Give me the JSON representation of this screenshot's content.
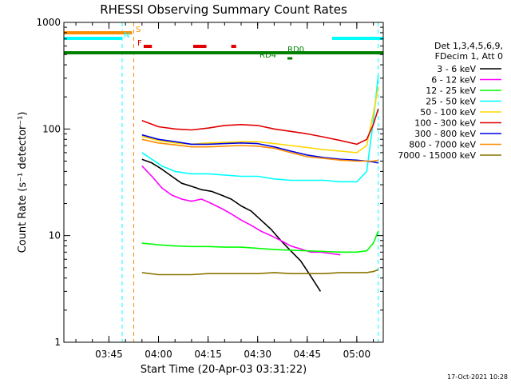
{
  "chart_data": {
    "type": "line",
    "title": "RHESSI Observing Summary Count Rates",
    "xlabel": "Start Time (20-Apr-03 03:31:22)",
    "ylabel": "Count Rate (s⁻¹ detector⁻¹)",
    "yscale": "log",
    "ylim": [
      1,
      1000
    ],
    "y_tick_labels": [
      "1",
      "10",
      "100",
      "1000"
    ],
    "xlim": [
      "03:31:22",
      "05:08:00"
    ],
    "x_ticks": [
      "03:45",
      "04:00",
      "04:15",
      "04:30",
      "04:45",
      "05:00"
    ],
    "grid": false,
    "timestamp": "17-Oct-2021 10:28",
    "legend": {
      "placement": "right",
      "header": [
        "Det 1,3,4,5,6,9,",
        "FDecim 1, Att 0"
      ],
      "entries": [
        {
          "label": "3 - 6 keV",
          "color": "#000000"
        },
        {
          "label": "6 - 12 keV",
          "color": "#ff00ff"
        },
        {
          "label": "12 - 25 keV",
          "color": "#00ff00"
        },
        {
          "label": "25 - 50 keV",
          "color": "#00ffff"
        },
        {
          "label": "50 - 100 keV",
          "color": "#ffd700"
        },
        {
          "label": "100 - 300 keV",
          "color": "#e00000"
        },
        {
          "label": "300 - 800 keV",
          "color": "#0000e0"
        },
        {
          "label": "800 - 7000 keV",
          "color": "#ff8c00"
        },
        {
          "label": "7000 - 15000 keV",
          "color": "#8b7500"
        }
      ]
    },
    "flag_bars": [
      {
        "label": "S",
        "color": "#ff8c00",
        "segments": [
          [
            "03:31:22",
            "03:52:00"
          ]
        ]
      },
      {
        "label": "N",
        "color": "#00ffff",
        "segments": [
          [
            "03:31:22",
            "03:49:00"
          ],
          [
            "04:52:30",
            "05:08:00"
          ]
        ]
      },
      {
        "label": "F",
        "color": "#e00000",
        "segments": [
          [
            "03:55:30",
            "03:58:00"
          ],
          [
            "04:10:30",
            "04:14:30"
          ],
          [
            "04:22:00",
            "04:23:30"
          ]
        ]
      },
      {
        "label": "RD0",
        "color": "#008000",
        "segments": [
          [
            "03:31:22",
            "05:08:00"
          ]
        ]
      },
      {
        "label": "RD4",
        "color": "#008000",
        "segments": [
          [
            "04:39:00",
            "04:40:30"
          ]
        ]
      }
    ],
    "vlines": [
      {
        "t": "03:49:00",
        "color": "#00ffff"
      },
      {
        "t": "03:52:30",
        "color": "#ff8c00"
      },
      {
        "t": "05:06:30",
        "color": "#00ffff"
      }
    ],
    "series": [
      {
        "name": "3 - 6 keV",
        "color": "#000000",
        "x": [
          "03:55:00",
          "03:58:00",
          "04:01:00",
          "04:04:00",
          "04:07:00",
          "04:10:00",
          "04:13:00",
          "04:16:00",
          "04:19:00",
          "04:22:00",
          "04:25:00",
          "04:28:00",
          "04:31:00",
          "04:34:00",
          "04:37:00",
          "04:40:00",
          "04:43:00",
          "04:46:00",
          "04:49:00"
        ],
        "y": [
          52,
          48,
          42,
          36,
          31,
          29,
          27,
          26,
          24,
          22,
          19,
          17,
          14,
          11.5,
          9,
          7.2,
          5.8,
          4.2,
          3.0
        ]
      },
      {
        "name": "6 - 12 keV",
        "color": "#ff00ff",
        "x": [
          "03:55:00",
          "03:58:00",
          "04:01:00",
          "04:04:00",
          "04:07:00",
          "04:10:00",
          "04:13:00",
          "04:16:00",
          "04:19:00",
          "04:22:00",
          "04:25:00",
          "04:28:00",
          "04:31:00",
          "04:34:00",
          "04:37:00",
          "04:40:00",
          "04:43:00",
          "04:46:00",
          "04:49:00",
          "04:52:00",
          "04:55:00"
        ],
        "y": [
          45,
          36,
          28,
          24,
          22,
          21,
          22,
          20,
          18,
          16,
          14,
          12.5,
          11,
          10,
          9,
          8,
          7.5,
          7,
          7,
          6.8,
          6.6
        ]
      },
      {
        "name": "12 - 25 keV",
        "color": "#00ff00",
        "x": [
          "03:55:00",
          "04:00:00",
          "04:05:00",
          "04:10:00",
          "04:15:00",
          "04:20:00",
          "04:25:00",
          "04:30:00",
          "04:35:00",
          "04:40:00",
          "04:45:00",
          "04:50:00",
          "04:55:00",
          "05:00:00",
          "05:03:00",
          "05:05:00",
          "05:06:30"
        ],
        "y": [
          8.5,
          8.2,
          8.0,
          7.9,
          7.9,
          7.8,
          7.8,
          7.6,
          7.4,
          7.3,
          7.2,
          7.1,
          7.0,
          7.0,
          7.2,
          8.5,
          11
        ]
      },
      {
        "name": "25 - 50 keV",
        "color": "#00ffff",
        "x": [
          "03:55:00",
          "03:58:00",
          "04:01:00",
          "04:05:00",
          "04:10:00",
          "04:15:00",
          "04:20:00",
          "04:25:00",
          "04:30:00",
          "04:35:00",
          "04:40:00",
          "04:45:00",
          "04:50:00",
          "04:55:00",
          "05:00:00",
          "05:03:00",
          "05:05:00",
          "05:06:30"
        ],
        "y": [
          60,
          52,
          45,
          40,
          38,
          38,
          37,
          36,
          36,
          34,
          33,
          33,
          33,
          32,
          32,
          40,
          120,
          320
        ]
      },
      {
        "name": "50 - 100 keV",
        "color": "#ffd700",
        "x": [
          "03:55:00",
          "04:00:00",
          "04:05:00",
          "04:10:00",
          "04:15:00",
          "04:20:00",
          "04:25:00",
          "04:30:00",
          "04:35:00",
          "04:40:00",
          "04:45:00",
          "04:50:00",
          "04:55:00",
          "05:00:00",
          "05:03:00",
          "05:05:00",
          "05:06:30"
        ],
        "y": [
          85,
          78,
          74,
          72,
          74,
          75,
          76,
          76,
          73,
          70,
          67,
          64,
          62,
          60,
          70,
          140,
          250
        ]
      },
      {
        "name": "100 - 300 keV",
        "color": "#e00000",
        "x": [
          "03:55:00",
          "04:00:00",
          "04:05:00",
          "04:10:00",
          "04:15:00",
          "04:20:00",
          "04:25:00",
          "04:30:00",
          "04:35:00",
          "04:40:00",
          "04:45:00",
          "04:50:00",
          "04:55:00",
          "05:00:00",
          "05:03:00",
          "05:05:00",
          "05:06:30"
        ],
        "y": [
          120,
          105,
          100,
          98,
          102,
          108,
          110,
          108,
          100,
          95,
          90,
          84,
          78,
          72,
          80,
          110,
          155
        ]
      },
      {
        "name": "300 - 800 keV",
        "color": "#0000e0",
        "x": [
          "03:55:00",
          "04:00:00",
          "04:05:00",
          "04:10:00",
          "04:15:00",
          "04:20:00",
          "04:25:00",
          "04:30:00",
          "04:35:00",
          "04:40:00",
          "04:45:00",
          "04:50:00",
          "04:55:00",
          "05:00:00",
          "05:03:00",
          "05:05:00",
          "05:06:30"
        ],
        "y": [
          88,
          80,
          76,
          72,
          72,
          73,
          74,
          73,
          68,
          62,
          57,
          54,
          52,
          51,
          50,
          49,
          48
        ]
      },
      {
        "name": "800 - 7000 keV",
        "color": "#ff8c00",
        "x": [
          "03:55:00",
          "04:00:00",
          "04:05:00",
          "04:10:00",
          "04:15:00",
          "04:20:00",
          "04:25:00",
          "04:30:00",
          "04:35:00",
          "04:40:00",
          "04:45:00",
          "04:50:00",
          "04:55:00",
          "05:00:00",
          "05:03:00",
          "05:05:00",
          "05:06:30"
        ],
        "y": [
          80,
          74,
          71,
          68,
          68,
          69,
          70,
          69,
          66,
          60,
          55,
          53,
          51,
          50,
          50,
          50,
          51
        ]
      },
      {
        "name": "7000 - 15000 keV",
        "color": "#8b7500",
        "x": [
          "03:55:00",
          "04:00:00",
          "04:05:00",
          "04:10:00",
          "04:15:00",
          "04:20:00",
          "04:25:00",
          "04:30:00",
          "04:35:00",
          "04:40:00",
          "04:45:00",
          "04:50:00",
          "04:55:00",
          "05:00:00",
          "05:03:00",
          "05:05:00",
          "05:06:30"
        ],
        "y": [
          4.5,
          4.3,
          4.3,
          4.3,
          4.4,
          4.4,
          4.4,
          4.4,
          4.5,
          4.4,
          4.4,
          4.4,
          4.5,
          4.5,
          4.5,
          4.6,
          4.8
        ]
      }
    ]
  }
}
